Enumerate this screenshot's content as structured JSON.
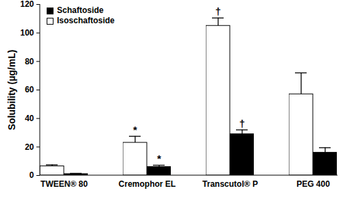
{
  "chart_data": {
    "type": "bar",
    "categories": [
      "TWEEN® 80",
      "Cremophor EL",
      "Transcutol® P",
      "PEG 400"
    ],
    "ylabel": "Solubility (µg/mL)",
    "ylim": [
      0,
      120
    ],
    "yticks": [
      0,
      20,
      40,
      60,
      80,
      100,
      120
    ],
    "legend": "top-left",
    "series": [
      {
        "name": "Schaftoside",
        "color": "#000000",
        "values": [
          1,
          6,
          29,
          16
        ],
        "error": [
          0.5,
          1.2,
          3,
          3.5
        ],
        "annotations": [
          null,
          "*",
          "†",
          null
        ]
      },
      {
        "name": "Isoschaftoside",
        "color": "#ffffff",
        "values": [
          6.5,
          23,
          105,
          57
        ],
        "error": [
          1,
          4.5,
          5.5,
          15
        ],
        "annotations": [
          null,
          "*",
          "†",
          null
        ]
      }
    ]
  }
}
